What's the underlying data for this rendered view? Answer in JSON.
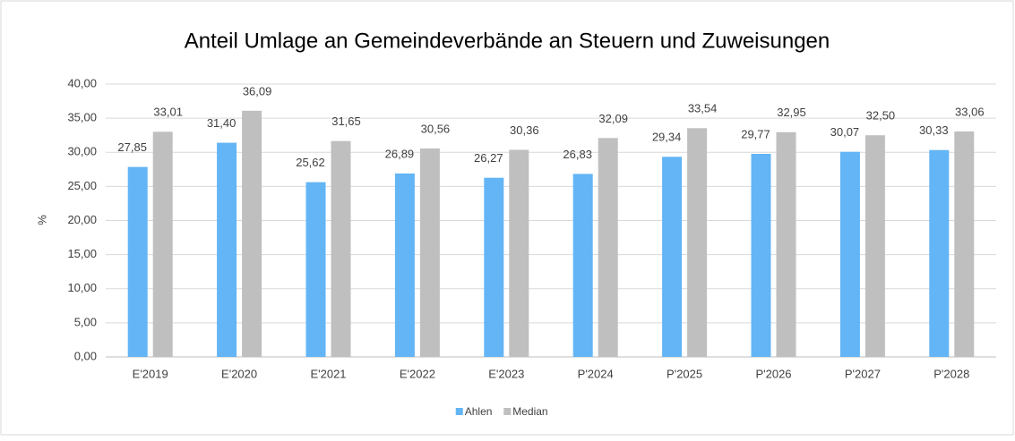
{
  "chart_data": {
    "type": "bar",
    "title": "Anteil Umlage an Gemeindeverbände an Steuern und Zuweisungen",
    "y_label": "%",
    "categories": [
      "E'2019",
      "E'2020",
      "E'2021",
      "E'2022",
      "E'2023",
      "P'2024",
      "P'2025",
      "P'2026",
      "P'2027",
      "P'2028"
    ],
    "series": [
      {
        "name": "Ahlen",
        "color": "#63b5f5",
        "values": [
          27.85,
          31.4,
          25.62,
          26.89,
          26.27,
          26.83,
          29.34,
          29.77,
          30.07,
          30.33
        ],
        "value_labels": [
          "27,85",
          "31,40",
          "25,62",
          "26,89",
          "26,27",
          "26,83",
          "29,34",
          "29,77",
          "30,07",
          "30,33"
        ]
      },
      {
        "name": "Median",
        "color": "#bfbfbf",
        "values": [
          33.01,
          36.09,
          31.65,
          30.56,
          30.36,
          32.09,
          33.54,
          32.95,
          32.5,
          33.06
        ],
        "value_labels": [
          "33,01",
          "36,09",
          "31,65",
          "30,56",
          "30,36",
          "32,09",
          "33,54",
          "32,95",
          "32,50",
          "33,06"
        ]
      }
    ],
    "ylim": [
      0,
      40
    ],
    "yticks": [
      {
        "value": 0,
        "label": "0,00"
      },
      {
        "value": 5,
        "label": "5,00"
      },
      {
        "value": 10,
        "label": "10,00"
      },
      {
        "value": 15,
        "label": "15,00"
      },
      {
        "value": 20,
        "label": "20,00"
      },
      {
        "value": 25,
        "label": "25,00"
      },
      {
        "value": 30,
        "label": "30,00"
      },
      {
        "value": 35,
        "label": "35,00"
      },
      {
        "value": 40,
        "label": "40,00"
      }
    ],
    "grid": true,
    "legend": "bottom"
  }
}
